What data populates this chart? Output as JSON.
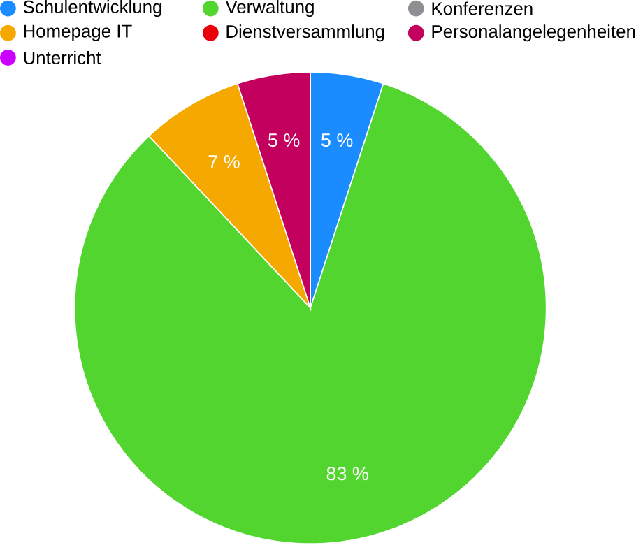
{
  "chart_data": {
    "type": "pie",
    "categories": [
      "Schulentwicklung",
      "Verwaltung",
      "Konferenzen",
      "Homepage IT",
      "Dienstversammlung",
      "Personalangelegenheiten",
      "Unterricht"
    ],
    "values": [
      5,
      83,
      0,
      7,
      0,
      5,
      0
    ],
    "colors": [
      "#1a8cff",
      "#52d62f",
      "#8e8e93",
      "#f5a800",
      "#e8000b",
      "#c4005e",
      "#cc00ff"
    ],
    "value_labels": [
      "5 %",
      "83 %",
      null,
      "7 %",
      null,
      "5 %",
      null
    ],
    "legend": "top"
  }
}
